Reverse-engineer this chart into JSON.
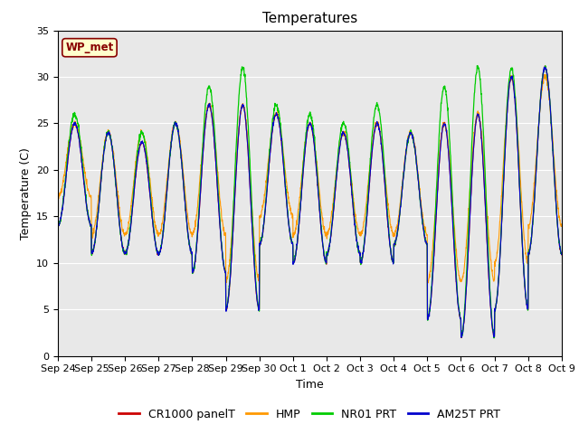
{
  "title": "Temperatures",
  "xlabel": "Time",
  "ylabel": "Temperature (C)",
  "ylim": [
    0,
    35
  ],
  "x_tick_labels": [
    "Sep 24",
    "Sep 25",
    "Sep 26",
    "Sep 27",
    "Sep 28",
    "Sep 29",
    "Sep 30",
    "Oct 1",
    "Oct 2",
    "Oct 3",
    "Oct 4",
    "Oct 5",
    "Oct 6",
    "Oct 7",
    "Oct 8",
    "Oct 9"
  ],
  "label_box_text": "WP_met",
  "label_box_facecolor": "#ffffcc",
  "label_box_edgecolor": "#880000",
  "label_box_textcolor": "#880000",
  "series_colors": [
    "#cc0000",
    "#ff9900",
    "#00cc00",
    "#0000cc"
  ],
  "series_labels": [
    "CR1000 panelT",
    "HMP",
    "NR01 PRT",
    "AM25T PRT"
  ],
  "title_fontsize": 11,
  "legend_fontsize": 9,
  "axis_label_fontsize": 9,
  "tick_fontsize": 8,
  "day_mins_base": [
    14,
    11,
    11,
    11,
    9,
    5,
    12,
    10,
    11,
    10,
    12,
    4,
    2,
    5,
    11
  ],
  "day_maxs_base": [
    25,
    24,
    23,
    25,
    27,
    27,
    26,
    25,
    24,
    25,
    24,
    25,
    26,
    30,
    31
  ],
  "day_maxs_green": [
    26,
    24,
    24,
    25,
    29,
    31,
    27,
    26,
    25,
    27,
    24,
    29,
    31,
    31,
    31
  ],
  "day_mins_orange": [
    17,
    13,
    13,
    13,
    13,
    8,
    15,
    13,
    13,
    13,
    13,
    8,
    8,
    10,
    14
  ],
  "day_maxs_orange": [
    25,
    24,
    24,
    25,
    27,
    27,
    26,
    25,
    24,
    25,
    24,
    25,
    26,
    30,
    30
  ]
}
